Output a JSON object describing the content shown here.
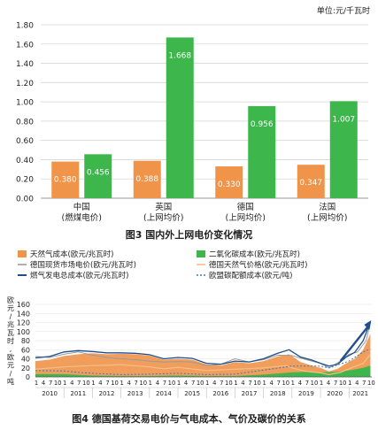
{
  "chart_data": [
    {
      "type": "bar",
      "unit_label": "单位:元/千瓦时",
      "categories": [
        [
          "中国",
          "(燃煤电价)"
        ],
        [
          "英国",
          "(上网均价)"
        ],
        [
          "德国",
          "(上网均价)"
        ],
        [
          "法国",
          "(上网均价)"
        ]
      ],
      "series": [
        {
          "values": [
            0.38,
            0.388,
            0.33,
            0.347
          ],
          "labels": [
            "0.380",
            "0.388",
            "0.330",
            "0.347"
          ],
          "color": "#f0944a"
        },
        {
          "values": [
            0.456,
            1.668,
            0.956,
            1.007
          ],
          "labels": [
            "0.456",
            "1.668",
            "0.956",
            "1.007"
          ],
          "color": "#3db64b"
        }
      ],
      "yticks": [
        "0.00",
        "0.20",
        "0.40",
        "0.60",
        "0.80",
        "1.00",
        "1.20",
        "1.40",
        "1.60",
        "1.80"
      ],
      "ylim": [
        0,
        1.8
      ],
      "grid": true,
      "caption": "图3 国内外上网电价变化情况"
    },
    {
      "type": "area",
      "ylabel": "欧元/兆瓦时,欧元/吨",
      "ylim": [
        0,
        160
      ],
      "yticks": [
        "0",
        "20",
        "40",
        "60",
        "80",
        "100",
        "120",
        "140",
        "160"
      ],
      "month_ticks": [
        "1",
        "4",
        "7",
        "10"
      ],
      "years": [
        "2010",
        "2011",
        "2012",
        "2013",
        "2014",
        "2015",
        "2016",
        "2017",
        "2018",
        "2019",
        "2020",
        "2021"
      ],
      "legend": [
        {
          "label": "天然气成本(欧元/兆瓦时)",
          "kind": "box",
          "color": "#f0944a"
        },
        {
          "label": "二氧化碳成本(欧元/兆瓦时)",
          "kind": "box",
          "color": "#3db64b"
        },
        {
          "label": "德国现货市场电价(欧元/兆瓦时)",
          "kind": "line",
          "color": "#9a9a9a"
        },
        {
          "label": "德国天然气价格(欧元/兆瓦时)",
          "kind": "line",
          "color": "#f7c088"
        },
        {
          "label": "燃气发电总成本(欧元/兆瓦时)",
          "kind": "line",
          "color": "#1f4e8c"
        },
        {
          "label": "欧盟碳配额成本(欧元/吨)",
          "kind": "dashed",
          "color": "#3a78c2"
        }
      ],
      "series_points": {
        "gas_cost": [
          [
            2010.0,
            35
          ],
          [
            2010.5,
            38
          ],
          [
            2011.0,
            46
          ],
          [
            2011.5,
            50
          ],
          [
            2012.0,
            52
          ],
          [
            2012.5,
            50
          ],
          [
            2013.0,
            51
          ],
          [
            2013.5,
            50
          ],
          [
            2014.0,
            47
          ],
          [
            2014.5,
            38
          ],
          [
            2015.0,
            40
          ],
          [
            2015.5,
            38
          ],
          [
            2016.0,
            28
          ],
          [
            2016.5,
            25
          ],
          [
            2017.0,
            33
          ],
          [
            2017.5,
            30
          ],
          [
            2018.0,
            35
          ],
          [
            2018.5,
            45
          ],
          [
            2018.9,
            50
          ],
          [
            2019.3,
            33
          ],
          [
            2019.7,
            25
          ],
          [
            2020.0,
            20
          ],
          [
            2020.3,
            12
          ],
          [
            2020.6,
            18
          ],
          [
            2020.9,
            30
          ],
          [
            2021.2,
            40
          ],
          [
            2021.5,
            60
          ],
          [
            2021.75,
            95
          ]
        ],
        "co2_cost": [
          [
            2010.0,
            6
          ],
          [
            2011.0,
            6
          ],
          [
            2012.0,
            3
          ],
          [
            2013.0,
            2
          ],
          [
            2014.0,
            2
          ],
          [
            2015.0,
            3
          ],
          [
            2016.0,
            2
          ],
          [
            2017.0,
            2
          ],
          [
            2018.0,
            5
          ],
          [
            2018.8,
            9
          ],
          [
            2019.0,
            10
          ],
          [
            2019.5,
            11
          ],
          [
            2020.0,
            10
          ],
          [
            2020.5,
            11
          ],
          [
            2021.0,
            14
          ],
          [
            2021.5,
            20
          ],
          [
            2021.75,
            25
          ]
        ],
        "spot_price": [
          [
            2010.0,
            45
          ],
          [
            2010.5,
            43
          ],
          [
            2011.0,
            50
          ],
          [
            2011.5,
            55
          ],
          [
            2012.0,
            48
          ],
          [
            2012.5,
            43
          ],
          [
            2013.0,
            40
          ],
          [
            2013.5,
            38
          ],
          [
            2014.0,
            35
          ],
          [
            2014.5,
            33
          ],
          [
            2015.0,
            34
          ],
          [
            2015.5,
            33
          ],
          [
            2016.0,
            25
          ],
          [
            2016.5,
            28
          ],
          [
            2017.0,
            40
          ],
          [
            2017.5,
            33
          ],
          [
            2018.0,
            38
          ],
          [
            2018.5,
            48
          ],
          [
            2019.0,
            47
          ],
          [
            2019.5,
            38
          ],
          [
            2020.0,
            30
          ],
          [
            2020.3,
            20
          ],
          [
            2020.7,
            35
          ],
          [
            2021.0,
            50
          ],
          [
            2021.3,
            55
          ],
          [
            2021.6,
            80
          ],
          [
            2021.75,
            120
          ]
        ],
        "gas_price": [
          [
            2010.0,
            17
          ],
          [
            2011.0,
            22
          ],
          [
            2012.0,
            25
          ],
          [
            2013.0,
            27
          ],
          [
            2014.0,
            22
          ],
          [
            2014.5,
            18
          ],
          [
            2015.0,
            21
          ],
          [
            2016.0,
            14
          ],
          [
            2017.0,
            17
          ],
          [
            2018.0,
            20
          ],
          [
            2018.8,
            25
          ],
          [
            2019.0,
            20
          ],
          [
            2019.5,
            12
          ],
          [
            2020.0,
            9
          ],
          [
            2020.3,
            5
          ],
          [
            2020.7,
            10
          ],
          [
            2021.0,
            18
          ],
          [
            2021.5,
            30
          ],
          [
            2021.75,
            50
          ]
        ],
        "total_cost": [
          [
            2010.0,
            42
          ],
          [
            2010.5,
            45
          ],
          [
            2011.0,
            55
          ],
          [
            2011.5,
            58
          ],
          [
            2012.0,
            56
          ],
          [
            2012.5,
            53
          ],
          [
            2013.0,
            53
          ],
          [
            2013.5,
            52
          ],
          [
            2014.0,
            49
          ],
          [
            2014.5,
            40
          ],
          [
            2015.0,
            43
          ],
          [
            2015.5,
            41
          ],
          [
            2016.0,
            30
          ],
          [
            2016.5,
            28
          ],
          [
            2017.0,
            35
          ],
          [
            2017.5,
            33
          ],
          [
            2018.0,
            40
          ],
          [
            2018.5,
            52
          ],
          [
            2018.9,
            60
          ],
          [
            2019.3,
            44
          ],
          [
            2019.7,
            37
          ],
          [
            2020.0,
            30
          ],
          [
            2020.3,
            24
          ],
          [
            2020.6,
            28
          ],
          [
            2020.9,
            44
          ],
          [
            2021.2,
            54
          ],
          [
            2021.5,
            80
          ],
          [
            2021.75,
            122
          ]
        ],
        "eua_cost": [
          [
            2010.0,
            14
          ],
          [
            2011.0,
            13
          ],
          [
            2011.5,
            10
          ],
          [
            2012.0,
            8
          ],
          [
            2013.0,
            5
          ],
          [
            2014.0,
            6
          ],
          [
            2015.0,
            8
          ],
          [
            2016.0,
            5
          ],
          [
            2017.0,
            6
          ],
          [
            2018.0,
            15
          ],
          [
            2018.8,
            22
          ],
          [
            2019.0,
            24
          ],
          [
            2020.0,
            24
          ],
          [
            2020.3,
            20
          ],
          [
            2021.0,
            35
          ],
          [
            2021.5,
            55
          ],
          [
            2021.75,
            62
          ]
        ]
      },
      "caption": "图4 德国基荷交易电价与气电成本、气价及碳价的关系"
    }
  ]
}
